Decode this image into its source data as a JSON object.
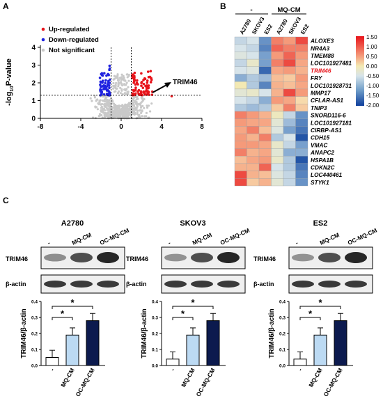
{
  "panels": {
    "a": "A",
    "b": "B",
    "c": "C"
  },
  "volcano": {
    "ylabel_prefix": "-log",
    "ylabel_sub": "10",
    "ylabel_suffix": "P-value",
    "legend": [
      {
        "label": "Up-regulated",
        "color": "#e8141b"
      },
      {
        "label": "Down-regulated",
        "color": "#1f22e0"
      },
      {
        "label": "Not significant",
        "color": "#c9c9c9"
      }
    ],
    "gene_label": "TRIM46",
    "x_ticks": [
      "-8",
      "-4",
      "0",
      "4",
      "8"
    ],
    "y_ticks": [
      "0",
      "1",
      "2",
      "3",
      "4"
    ],
    "xlim": [
      -8,
      8
    ],
    "ylim": [
      0,
      4
    ],
    "thresholds": {
      "fold_change": [
        -1,
        1
      ],
      "significance": 1.3
    }
  },
  "heatmap": {
    "groups": [
      "-",
      "MQ-CM"
    ],
    "columns": [
      "A2780",
      "SKOV3",
      "ES2",
      "A2780",
      "SKOV3",
      "ES2"
    ],
    "genes": [
      "ALOXE3",
      "NR4A3",
      "TMEM88",
      "LOC101927481",
      "TRIM46",
      "FRY",
      "LOC101928731",
      "MMP17",
      "CFLAR-AS1",
      "TNIP3",
      "SNORD116-6",
      "LOC101927181",
      "CIRBP-AS1",
      "CDH15",
      "VMAC",
      "ANAPC2",
      "HSPA1B",
      "CDKN2C",
      "LOC440461",
      "STYK1"
    ],
    "highlight_gene": "TRIM46",
    "highlight_color": "#e8141b",
    "scale_ticks": [
      "1.50",
      "1.00",
      "0.50",
      "0.00",
      "-0.50",
      "-1.00",
      "-1.50",
      "-2.00"
    ],
    "scale_range": [
      -2.0,
      1.5
    ],
    "values": [
      [
        -0.6,
        -0.5,
        -1.1,
        1.1,
        1.0,
        1.3
      ],
      [
        -0.5,
        -0.6,
        -1.2,
        1.2,
        1.1,
        1.1
      ],
      [
        -0.4,
        -0.5,
        -1.0,
        1.0,
        1.2,
        1.0
      ],
      [
        -0.6,
        -0.2,
        -1.0,
        1.1,
        1.3,
        0.9
      ],
      [
        -0.5,
        -0.4,
        -1.4,
        0.9,
        1.0,
        0.8
      ],
      [
        -0.9,
        -0.7,
        -0.8,
        0.7,
        0.6,
        1.0
      ],
      [
        0.0,
        -0.7,
        -1.2,
        0.8,
        0.7,
        0.9
      ],
      [
        -0.3,
        -0.2,
        -0.5,
        0.8,
        1.3,
        1.0
      ],
      [
        -0.5,
        -0.6,
        -0.9,
        1.0,
        0.9,
        0.4
      ],
      [
        -0.7,
        -0.8,
        -0.7,
        0.6,
        1.1,
        0.6
      ],
      [
        1.1,
        1.0,
        0.8,
        -0.1,
        -0.6,
        -1.1
      ],
      [
        1.0,
        0.9,
        0.9,
        -0.3,
        -0.8,
        -1.2
      ],
      [
        0.9,
        1.1,
        0.7,
        -0.4,
        -1.0,
        -1.3
      ],
      [
        1.0,
        0.8,
        1.1,
        -0.7,
        -0.5,
        -1.6
      ],
      [
        1.0,
        1.0,
        0.9,
        -0.2,
        -0.6,
        -1.0
      ],
      [
        1.1,
        0.8,
        0.9,
        -0.3,
        -0.9,
        -0.9
      ],
      [
        0.7,
        0.9,
        1.0,
        -0.2,
        -0.7,
        -1.6
      ],
      [
        0.8,
        0.8,
        1.2,
        -0.5,
        -0.7,
        -1.3
      ],
      [
        1.3,
        0.8,
        0.7,
        -0.4,
        -0.6,
        -1.2
      ],
      [
        1.3,
        0.6,
        0.8,
        -0.3,
        -0.6,
        -1.1
      ]
    ]
  },
  "western": {
    "lanes": [
      "-",
      "MQ-CM",
      "OC-MQ-CM"
    ],
    "row_labels": [
      "TRIM46",
      "β-actin"
    ],
    "ylabel": "TRIM46/β-actin",
    "y_ticks": [
      "0.0",
      "0.1",
      "0.2",
      "0.3",
      "0.4"
    ],
    "significance": "*",
    "bar_colors": [
      "#ffffff",
      "#bcdaf3",
      "#0c1a4e"
    ],
    "cell_lines": [
      {
        "name": "A2780",
        "values": [
          0.05,
          0.19,
          0.28
        ]
      },
      {
        "name": "SKOV3",
        "values": [
          0.04,
          0.19,
          0.28
        ]
      },
      {
        "name": "ES2",
        "values": [
          0.04,
          0.19,
          0.28
        ]
      }
    ]
  },
  "chart_data": [
    {
      "type": "scatter",
      "title": "",
      "xlabel": "",
      "ylabel": "-log10P-value",
      "xlim": [
        -8,
        8
      ],
      "ylim": [
        0,
        4
      ],
      "series": [
        {
          "name": "Up-regulated",
          "x": [
            1.2,
            1.5,
            1.8,
            2.0,
            2.3,
            2.6,
            1.4,
            1.9,
            2.2,
            1.6,
            2.8,
            3.0,
            5.0
          ],
          "y": [
            1.4,
            1.6,
            2.2,
            1.8,
            1.5,
            1.9,
            2.5,
            2.4,
            2.7,
            1.7,
            1.6,
            1.5,
            1.25
          ]
        },
        {
          "name": "Down-regulated",
          "x": [
            -1.2,
            -1.5,
            -1.8,
            -2.1,
            -1.3,
            -1.6,
            -1.9,
            -1.4,
            -1.1,
            -2.0
          ],
          "y": [
            1.4,
            1.6,
            2.0,
            1.5,
            2.4,
            2.9,
            1.8,
            2.2,
            1.7,
            1.6
          ]
        }
      ],
      "annotations": [
        "TRIM46"
      ],
      "grid": false
    },
    {
      "type": "bar",
      "title": "A2780",
      "categories": [
        "-",
        "MQ-CM",
        "OC-MQ-CM"
      ],
      "values": [
        0.05,
        0.19,
        0.28
      ],
      "ylabel": "TRIM46/β-actin",
      "ylim": [
        0,
        0.4
      ]
    },
    {
      "type": "bar",
      "title": "SKOV3",
      "categories": [
        "-",
        "MQ-CM",
        "OC-MQ-CM"
      ],
      "values": [
        0.04,
        0.19,
        0.28
      ],
      "ylabel": "TRIM46/β-actin",
      "ylim": [
        0,
        0.4
      ]
    },
    {
      "type": "bar",
      "title": "ES2",
      "categories": [
        "-",
        "MQ-CM",
        "OC-MQ-CM"
      ],
      "values": [
        0.04,
        0.19,
        0.28
      ],
      "ylabel": "TRIM46/β-actin",
      "ylim": [
        0,
        0.4
      ]
    }
  ]
}
